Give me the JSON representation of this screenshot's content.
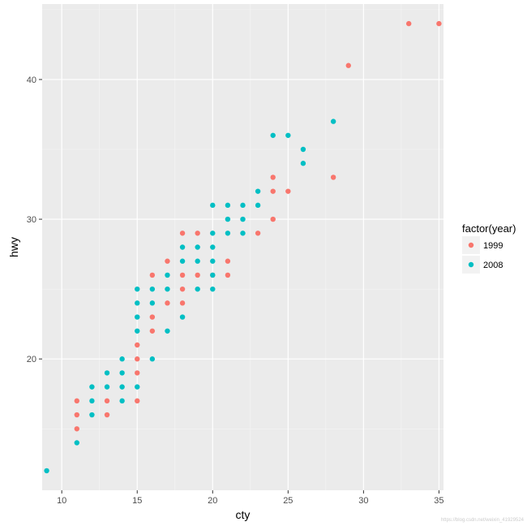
{
  "chart_data": {
    "type": "scatter",
    "xlabel": "cty",
    "ylabel": "hwy",
    "xlim": [
      8.7,
      35.3
    ],
    "ylim": [
      10.6,
      45.4
    ],
    "x_ticks": [
      10,
      15,
      20,
      25,
      30,
      35
    ],
    "y_ticks": [
      20,
      30,
      40
    ],
    "grid": true,
    "legend": {
      "title": "factor(year)",
      "placement": "right",
      "entries": [
        "1999",
        "2008"
      ]
    },
    "colors": {
      "1999": "#F8766D",
      "2008": "#00BFC4"
    },
    "series": [
      {
        "name": "1999",
        "color": "#F8766D",
        "points": [
          [
            11,
            17
          ],
          [
            11,
            16
          ],
          [
            11,
            15
          ],
          [
            13,
            17
          ],
          [
            13,
            16
          ],
          [
            15,
            17
          ],
          [
            15,
            19
          ],
          [
            15,
            20
          ],
          [
            15,
            21
          ],
          [
            16,
            26
          ],
          [
            16,
            23
          ],
          [
            16,
            22
          ],
          [
            17,
            27
          ],
          [
            17,
            24
          ],
          [
            18,
            29
          ],
          [
            18,
            26
          ],
          [
            18,
            25
          ],
          [
            18,
            24
          ],
          [
            19,
            29
          ],
          [
            19,
            26
          ],
          [
            20,
            26
          ],
          [
            21,
            27
          ],
          [
            21,
            26
          ],
          [
            23,
            29
          ],
          [
            24,
            33
          ],
          [
            24,
            32
          ],
          [
            24,
            30
          ],
          [
            25,
            32
          ],
          [
            28,
            33
          ],
          [
            29,
            41
          ],
          [
            33,
            44
          ],
          [
            35,
            44
          ]
        ]
      },
      {
        "name": "2008",
        "color": "#00BFC4",
        "points": [
          [
            9,
            12
          ],
          [
            11,
            14
          ],
          [
            12,
            18
          ],
          [
            12,
            17
          ],
          [
            12,
            16
          ],
          [
            13,
            19
          ],
          [
            13,
            18
          ],
          [
            14,
            20
          ],
          [
            14,
            19
          ],
          [
            14,
            18
          ],
          [
            14,
            17
          ],
          [
            15,
            25
          ],
          [
            15,
            24
          ],
          [
            15,
            23
          ],
          [
            15,
            22
          ],
          [
            15,
            18
          ],
          [
            16,
            25
          ],
          [
            16,
            24
          ],
          [
            16,
            20
          ],
          [
            17,
            26
          ],
          [
            17,
            25
          ],
          [
            17,
            22
          ],
          [
            18,
            28
          ],
          [
            18,
            27
          ],
          [
            18,
            23
          ],
          [
            19,
            28
          ],
          [
            19,
            27
          ],
          [
            19,
            25
          ],
          [
            20,
            31
          ],
          [
            20,
            29
          ],
          [
            20,
            28
          ],
          [
            20,
            27
          ],
          [
            20,
            26
          ],
          [
            20,
            25
          ],
          [
            21,
            31
          ],
          [
            21,
            30
          ],
          [
            21,
            29
          ],
          [
            22,
            31
          ],
          [
            22,
            30
          ],
          [
            22,
            29
          ],
          [
            23,
            32
          ],
          [
            23,
            31
          ],
          [
            24,
            36
          ],
          [
            25,
            36
          ],
          [
            26,
            35
          ],
          [
            26,
            34
          ],
          [
            28,
            37
          ]
        ]
      }
    ]
  },
  "watermark": "https://blog.csdn.net/weixin_41929524"
}
